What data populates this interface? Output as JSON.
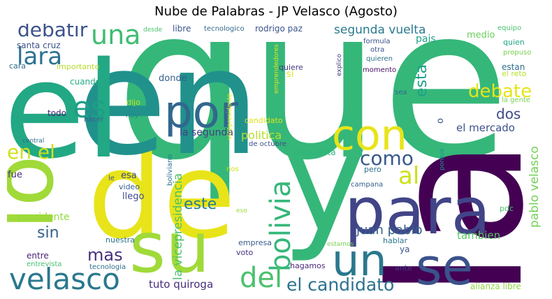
{
  "chart_data": {
    "type": "wordcloud",
    "title": "Nube de Palabras - JP Velasco (Agosto)",
    "words": [
      {
        "text": "que",
        "color": "#35b779"
      },
      {
        "text": "de",
        "color": "#e8e419"
      },
      {
        "text": "la",
        "color": "#440154"
      },
      {
        "text": "en",
        "color": "#21918c"
      },
      {
        "text": "el",
        "color": "#22a884"
      },
      {
        "text": "y",
        "color": "#35b779"
      },
      {
        "text": "lo",
        "color": "#a0da39"
      },
      {
        "text": "su",
        "color": "#a0da39"
      },
      {
        "text": "para",
        "color": "#414487"
      },
      {
        "text": "se",
        "color": "#3b528b"
      },
      {
        "text": "un",
        "color": "#2a788e"
      },
      {
        "text": "por",
        "color": "#31688e"
      },
      {
        "text": "con",
        "color": "#e8e419"
      },
      {
        "text": "velasco",
        "color": "#2a788e"
      },
      {
        "text": "bolivia",
        "color": "#35b779"
      },
      {
        "text": "del",
        "color": "#4ac16d"
      },
      {
        "text": "una",
        "color": "#3fbc73"
      },
      {
        "text": "lara",
        "color": "#2c728e"
      },
      {
        "text": "es",
        "color": "#1f9e89"
      },
      {
        "text": "debatir",
        "color": "#3b528b"
      },
      {
        "text": "en el",
        "color": "#d0e11c"
      },
      {
        "text": "al",
        "color": "#cde11d"
      },
      {
        "text": "debate",
        "color": "#e5e419"
      },
      {
        "text": "como",
        "color": "#38598c"
      },
      {
        "text": "el candidato",
        "color": "#2c728e"
      },
      {
        "text": "este",
        "color": "#287d8e"
      },
      {
        "text": "mas",
        "color": "#472f7d"
      },
      {
        "text": "sin",
        "color": "#33638d"
      },
      {
        "text": "esta",
        "color": "#1fa187"
      },
      {
        "text": "dos",
        "color": "#3e4a89"
      },
      {
        "text": "segunda vuelta",
        "color": "#29798e"
      },
      {
        "text": "pablo velasco",
        "color": "#73d056"
      },
      {
        "text": "la vicepresidencia",
        "color": "#4ac16d"
      },
      {
        "text": "juan pablo",
        "color": "#35608d"
      },
      {
        "text": "tuto quiroga",
        "color": "#472d7b"
      },
      {
        "text": "el mercado",
        "color": "#3b528b"
      },
      {
        "text": "politica",
        "color": "#b8de29"
      },
      {
        "text": "tambien",
        "color": "#56c667"
      },
      {
        "text": "presidente",
        "color": "#95d840"
      },
      {
        "text": "la segunda",
        "color": "#433e85"
      },
      {
        "text": "rodrigo paz",
        "color": "#39558c"
      },
      {
        "text": "santa cruz",
        "color": "#3b528b"
      },
      {
        "text": "medio",
        "color": "#6ccd5a"
      },
      {
        "text": "pais",
        "color": "#1fa187"
      },
      {
        "text": "donde",
        "color": "#34618d"
      },
      {
        "text": "cuando",
        "color": "#25ac82"
      },
      {
        "text": "fue",
        "color": "#482878"
      },
      {
        "text": "esa",
        "color": "#3e4989"
      },
      {
        "text": "llego",
        "color": "#3e4a89"
      },
      {
        "text": "video",
        "color": "#355f8d"
      },
      {
        "text": "propuesta",
        "color": "#2fb47c"
      },
      {
        "text": "entre",
        "color": "#481f70"
      },
      {
        "text": "nuestra",
        "color": "#2c728e"
      },
      {
        "text": "empresa",
        "color": "#38598c"
      },
      {
        "text": "voto",
        "color": "#46327e"
      },
      {
        "text": "hablar",
        "color": "#2a788e"
      },
      {
        "text": "hagamos",
        "color": "#482878"
      },
      {
        "text": "tecnologia",
        "color": "#2e6f8e"
      },
      {
        "text": "entrevista",
        "color": "#46c06f"
      },
      {
        "text": "alianza libre",
        "color": "#8fd744"
      },
      {
        "text": "ante",
        "color": "#453882"
      },
      {
        "text": "ya",
        "color": "#3b528b"
      },
      {
        "text": "estamos",
        "color": "#7ad151"
      },
      {
        "text": "pdc",
        "color": "#4ac16d"
      },
      {
        "text": "campana",
        "color": "#34618d"
      },
      {
        "text": "pero",
        "color": "#2d708e"
      },
      {
        "text": "de octubre",
        "color": "#3b528b"
      },
      {
        "text": "candidato",
        "color": "#dde318"
      },
      {
        "text": "boliviano",
        "color": "#2c728e"
      },
      {
        "text": "vicepresidente",
        "color": "#e5e419"
      },
      {
        "text": "emprendedores",
        "color": "#e2e418"
      },
      {
        "text": "tecnologico",
        "color": "#31688e"
      },
      {
        "text": "libre",
        "color": "#3b528b"
      },
      {
        "text": "desde",
        "color": "#4ac16d"
      },
      {
        "text": "cara",
        "color": "#2e6e8e"
      },
      {
        "text": "importante",
        "color": "#b5de2b"
      },
      {
        "text": "todo",
        "color": "#482475"
      },
      {
        "text": "hacer",
        "color": "#355f8d"
      },
      {
        "text": "hay",
        "color": "#238a8d"
      },
      {
        "text": "dijo",
        "color": "#c2df23"
      },
      {
        "text": "central",
        "color": "#2e6e8e"
      },
      {
        "text": "le",
        "color": "#3b528b"
      },
      {
        "text": "nos",
        "color": "#cde11d"
      },
      {
        "text": "eso",
        "color": "#9bd93c"
      },
      {
        "text": "si",
        "color": "#dde318"
      },
      {
        "text": "quiere",
        "color": "#443a83"
      },
      {
        "text": "explico",
        "color": "#46337f"
      },
      {
        "text": "formula",
        "color": "#3b528b"
      },
      {
        "text": "otra",
        "color": "#3b528b"
      },
      {
        "text": "quieren",
        "color": "#2c728e"
      },
      {
        "text": "momento",
        "color": "#471063"
      },
      {
        "text": "equipo",
        "color": "#4ac16d"
      },
      {
        "text": "quien",
        "color": "#20a386"
      },
      {
        "text": "propuso",
        "color": "#7ad151"
      },
      {
        "text": "estan",
        "color": "#2d708e"
      },
      {
        "text": "el reto",
        "color": "#b5de2b"
      },
      {
        "text": "la gente",
        "color": "#7ad151"
      },
      {
        "text": "sea",
        "color": "#31688e"
      },
      {
        "text": "o",
        "color": "#3b528b"
      },
      {
        "text": "porque",
        "color": "#21918c"
      }
    ]
  }
}
